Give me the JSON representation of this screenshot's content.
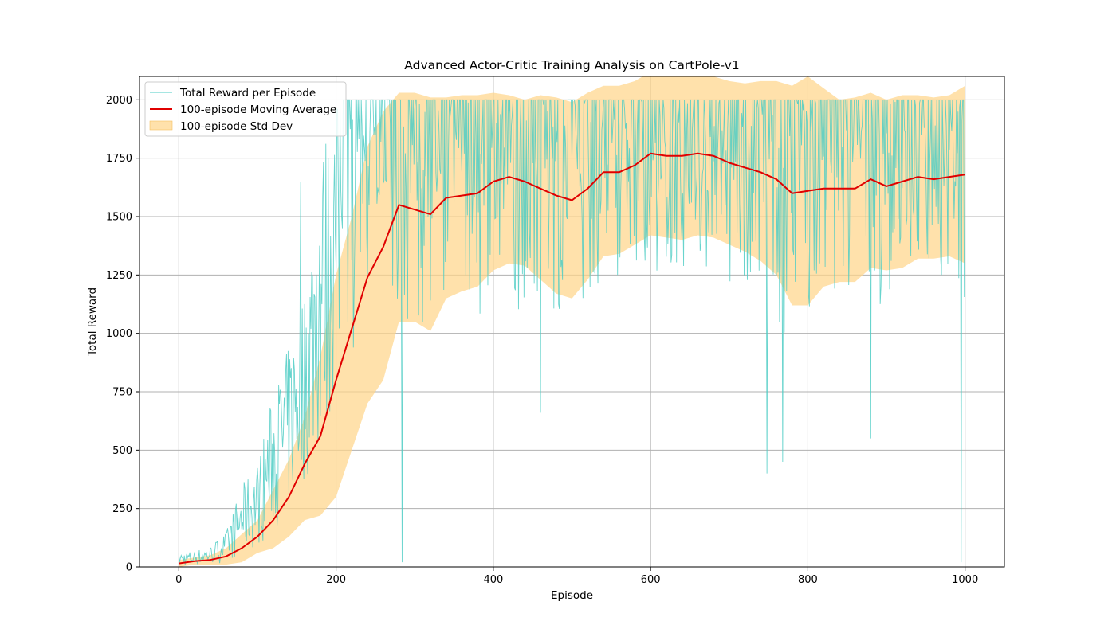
{
  "chart_data": {
    "type": "line",
    "title": "Advanced Actor-Critic Training Analysis on CartPole-v1",
    "xlabel": "Episode",
    "ylabel": "Total Reward",
    "xlim": [
      -50,
      1050
    ],
    "ylim": [
      0,
      2100
    ],
    "xticks": [
      0,
      200,
      400,
      600,
      800,
      1000
    ],
    "yticks": [
      0,
      250,
      500,
      750,
      1000,
      1250,
      1500,
      1750,
      2000
    ],
    "grid": true,
    "legend_position": "upper-left",
    "colors": {
      "raw": "#4ecdc4",
      "moving_average": "#e00000",
      "std_band": "#ffd68a",
      "grid": "#b0b0b0"
    },
    "series": [
      {
        "name": "Total Reward per Episode",
        "kind": "raw-episode-reward",
        "episodes": [
          0,
          999
        ],
        "envelope_low_x": [
          0,
          20,
          40,
          60,
          80,
          100,
          120,
          140,
          160,
          180,
          200,
          220,
          240,
          260,
          280,
          300,
          350,
          400,
          450,
          500,
          550,
          600,
          650,
          700,
          750,
          800,
          850,
          900,
          950,
          999
        ],
        "envelope_low_y": [
          5,
          5,
          10,
          20,
          40,
          80,
          150,
          230,
          350,
          450,
          700,
          900,
          1050,
          1100,
          1000,
          1000,
          1050,
          1050,
          1100,
          1100,
          1200,
          1200,
          1250,
          1200,
          1000,
          1000,
          1100,
          1100,
          1150,
          1150
        ],
        "envelope_high_x": [
          0,
          20,
          40,
          60,
          80,
          100,
          120,
          140,
          160,
          180,
          200,
          220,
          240,
          260,
          280,
          300,
          350,
          400,
          450,
          500,
          550,
          600,
          650,
          700,
          750,
          800,
          850,
          900,
          950,
          999
        ],
        "envelope_high_y": [
          60,
          70,
          90,
          150,
          350,
          450,
          750,
          950,
          1200,
          1800,
          2000,
          2000,
          2000,
          2000,
          2000,
          2000,
          2000,
          2000,
          2000,
          2000,
          2000,
          2000,
          2000,
          2000,
          2000,
          2000,
          2000,
          2000,
          2000,
          2000
        ],
        "notable_points": [
          [
            155,
            1650
          ],
          [
            284,
            20
          ],
          [
            995,
            20
          ],
          [
            748,
            400
          ],
          [
            768,
            450
          ],
          [
            880,
            550
          ],
          [
            460,
            660
          ]
        ]
      },
      {
        "name": "100-episode Moving Average",
        "x": [
          0,
          20,
          40,
          60,
          80,
          100,
          120,
          140,
          160,
          180,
          200,
          220,
          240,
          260,
          280,
          300,
          320,
          340,
          360,
          380,
          400,
          420,
          440,
          460,
          480,
          500,
          520,
          540,
          560,
          580,
          600,
          620,
          640,
          660,
          680,
          700,
          720,
          740,
          760,
          780,
          800,
          820,
          840,
          860,
          880,
          900,
          920,
          940,
          960,
          980,
          1000
        ],
        "y": [
          15,
          25,
          30,
          45,
          80,
          130,
          200,
          300,
          440,
          560,
          800,
          1020,
          1240,
          1370,
          1550,
          1530,
          1510,
          1580,
          1590,
          1600,
          1650,
          1670,
          1650,
          1620,
          1590,
          1570,
          1620,
          1690,
          1690,
          1720,
          1770,
          1760,
          1760,
          1770,
          1760,
          1730,
          1710,
          1690,
          1660,
          1600,
          1610,
          1620,
          1620,
          1620,
          1660,
          1630,
          1650,
          1670,
          1660,
          1670,
          1680
        ]
      },
      {
        "name": "100-episode Std Dev",
        "x": [
          0,
          20,
          40,
          60,
          80,
          100,
          120,
          140,
          160,
          180,
          200,
          220,
          240,
          260,
          280,
          300,
          320,
          340,
          360,
          380,
          400,
          420,
          440,
          460,
          480,
          500,
          520,
          540,
          560,
          580,
          600,
          620,
          640,
          660,
          680,
          700,
          720,
          740,
          760,
          780,
          800,
          820,
          840,
          860,
          880,
          900,
          920,
          940,
          960,
          980,
          1000
        ],
        "upper": [
          30,
          40,
          50,
          80,
          140,
          200,
          330,
          460,
          640,
          900,
          1250,
          1500,
          1800,
          1950,
          2030,
          2030,
          2010,
          2010,
          2020,
          2020,
          2030,
          2020,
          2000,
          2020,
          2010,
          1990,
          2030,
          2060,
          2060,
          2080,
          2120,
          2110,
          2100,
          2110,
          2100,
          2080,
          2070,
          2080,
          2080,
          2060,
          2100,
          2050,
          2000,
          2010,
          2030,
          2000,
          2020,
          2020,
          2010,
          2020,
          2060
        ],
        "lower": [
          0,
          10,
          10,
          10,
          20,
          60,
          80,
          130,
          200,
          220,
          300,
          500,
          700,
          800,
          1050,
          1050,
          1010,
          1150,
          1180,
          1200,
          1270,
          1300,
          1290,
          1230,
          1170,
          1150,
          1230,
          1330,
          1340,
          1380,
          1420,
          1410,
          1400,
          1420,
          1410,
          1380,
          1350,
          1310,
          1250,
          1120,
          1120,
          1200,
          1220,
          1220,
          1280,
          1270,
          1280,
          1320,
          1320,
          1330,
          1300
        ]
      }
    ]
  }
}
